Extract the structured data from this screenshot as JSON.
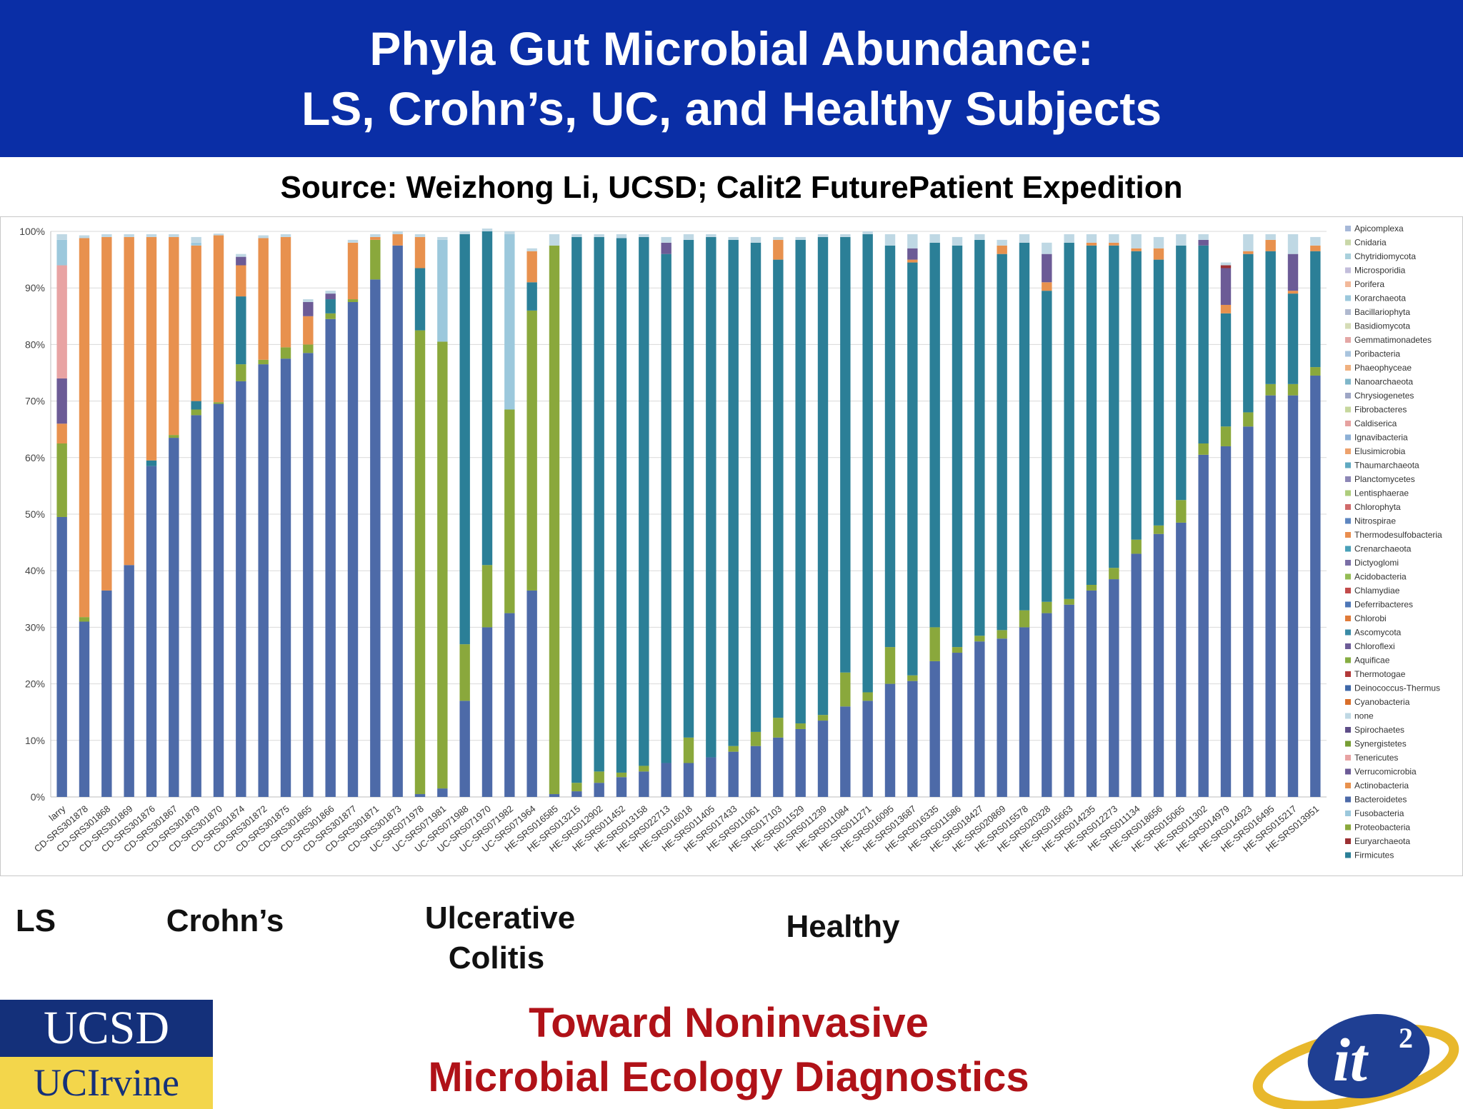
{
  "slide": {
    "title_line1": "Phyla Gut Microbial Abundance:",
    "title_line2": "LS, Crohn’s, UC, and Healthy Subjects",
    "source": "Source: Weizhong Li, UCSD; Calit2 FuturePatient Expedition",
    "group_labels": {
      "ls": "LS",
      "crohns": "Crohn’s",
      "uc_line1": "Ulcerative",
      "uc_line2": "Colitis",
      "healthy": "Healthy"
    },
    "tagline_line1": "Toward Noninvasive",
    "tagline_line2": "Microbial Ecology Diagnostics",
    "logo_ucsd": "UCSD",
    "logo_uci": "UCIrvine",
    "logo_it2": "it",
    "logo_it2_sup": "2",
    "colors": {
      "title_band": "#0a2ea6",
      "tagline": "#b01218"
    }
  },
  "chart_data": {
    "type": "bar",
    "stacked": true,
    "normalized": true,
    "ylim": [
      0,
      100
    ],
    "yticks": [
      "0%",
      "10%",
      "20%",
      "30%",
      "40%",
      "50%",
      "60%",
      "70%",
      "80%",
      "90%",
      "100%"
    ],
    "grid": true,
    "legend_position": "right",
    "categories": [
      "larry",
      "CD-SRS301878",
      "CD-SRS301868",
      "CD-SRS301869",
      "CD-SRS301876",
      "CD-SRS301867",
      "CD-SRS301879",
      "CD-SRS301870",
      "CD-SRS301874",
      "CD-SRS301872",
      "CD-SRS301875",
      "CD-SRS301865",
      "CD-SRS301866",
      "CD-SRS301877",
      "CD-SRS301871",
      "CD-SRS301873",
      "UC-SRS071978",
      "UC-SRS071981",
      "UC-SRS071988",
      "UC-SRS071970",
      "UC-SRS071982",
      "UC-SRS071964",
      "HE-SRS016585",
      "HE-SRS013215",
      "HE-SRS012902",
      "HE-SRS011452",
      "HE-SRS013158",
      "HE-SRS022713",
      "HE-SRS016018",
      "HE-SRS011405",
      "HE-SRS017433",
      "HE-SRS011061",
      "HE-SRS017103",
      "HE-SRS011529",
      "HE-SRS011239",
      "HE-SRS011084",
      "HE-SRS011271",
      "HE-SRS016095",
      "HE-SRS013687",
      "HE-SRS016335",
      "HE-SRS011586",
      "HE-SRS018427",
      "HE-SRS020869",
      "HE-SRS015578",
      "HE-SRS020328",
      "HE-SRS015663",
      "HE-SRS014235",
      "HE-SRS012273",
      "HE-SRS011134",
      "HE-SRS018656",
      "HE-SRS015065",
      "HE-SRS011302",
      "HE-SRS014979",
      "HE-SRS014923",
      "HE-SRS016495",
      "HE-SRS015217",
      "HE-SRS013951"
    ],
    "legend": [
      "Apicomplexa",
      "Cnidaria",
      "Chytridiomycota",
      "Microsporidia",
      "Porifera",
      "Korarchaeota",
      "Bacillariophyta",
      "Basidiomycota",
      "Gemmatimonadetes",
      "Poribacteria",
      "Phaeophyceae",
      "Nanoarchaeota",
      "Chrysiogenetes",
      "Fibrobacteres",
      "Caldiserica",
      "Ignavibacteria",
      "Elusimicrobia",
      "Thaumarchaeota",
      "Planctomycetes",
      "Lentisphaerae",
      "Chlorophyta",
      "Nitrospirae",
      "Thermodesulfobacteria",
      "Crenarchaeota",
      "Dictyoglomi",
      "Acidobacteria",
      "Chlamydiae",
      "Deferribacteres",
      "Chlorobi",
      "Ascomycota",
      "Chloroflexi",
      "Aquificae",
      "Thermotogae",
      "Deinococcus-Thermus",
      "Cyanobacteria",
      "none",
      "Spirochaetes",
      "Synergistetes",
      "Tenericutes",
      "Verrucomicrobia",
      "Actinobacteria",
      "Bacteroidetes",
      "Fusobacteria",
      "Proteobacteria",
      "Euryarchaeota",
      "Firmicutes"
    ],
    "series": [
      {
        "name": "Bacteroidetes",
        "color": "#4d6aa8",
        "values": [
          49.5,
          31,
          36.5,
          41,
          58.5,
          63.5,
          67.5,
          69.5,
          73.5,
          76.5,
          77.5,
          78.5,
          84.5,
          87.5,
          91.5,
          97.5,
          0.5,
          1.5,
          17,
          30,
          32.5,
          36.5,
          0.5,
          1,
          2.5,
          3.5,
          4.5,
          6,
          6,
          7,
          8,
          9,
          10.5,
          12,
          13.5,
          16,
          17,
          20,
          20.5,
          24,
          25.5,
          27.5,
          28,
          30,
          32.5,
          34,
          36.5,
          38.5,
          43,
          46.5,
          48.5,
          60.5,
          62,
          65.5,
          71,
          71,
          74.5
        ]
      },
      {
        "name": "Proteobacteria",
        "color": "#8aa83c",
        "values": [
          13,
          0.8,
          0,
          0,
          0,
          0.5,
          1,
          0.3,
          3,
          0.8,
          2,
          1.5,
          1,
          0.5,
          7,
          0,
          82,
          79,
          10,
          11,
          36,
          49.5,
          97,
          1.5,
          2,
          0.8,
          1,
          0,
          4.5,
          0,
          1,
          2.5,
          3.5,
          1,
          1,
          6,
          1.5,
          6.5,
          1,
          6,
          1,
          1,
          1.5,
          3,
          2,
          1,
          1,
          2,
          2.5,
          1.5,
          4,
          2,
          3.5,
          2.5,
          2,
          2,
          1.5
        ]
      },
      {
        "name": "Firmicutes",
        "color": "#2b7f97",
        "values": [
          0,
          0,
          0,
          0,
          1,
          0,
          1.5,
          0,
          12,
          0,
          0,
          0,
          2.5,
          0,
          0,
          0,
          11,
          0,
          72.5,
          59,
          0,
          5,
          0,
          96.5,
          94.5,
          94.5,
          93.5,
          90,
          88,
          92,
          89.5,
          86.5,
          81,
          85.5,
          84.5,
          77,
          81,
          71,
          73,
          68,
          71,
          70,
          66.5,
          65,
          55,
          63,
          60,
          57,
          51,
          47,
          45,
          35,
          20,
          28,
          23.5,
          16,
          20.5
        ]
      },
      {
        "name": "Actinobacteria",
        "color": "#e8914e",
        "values": [
          3.5,
          67,
          62.5,
          58,
          39.5,
          35,
          27.5,
          29.5,
          5.5,
          21.5,
          19.5,
          5,
          0,
          10,
          0.5,
          2,
          5.5,
          0,
          0,
          0,
          0,
          5.5,
          0,
          0,
          0,
          0,
          0,
          0,
          0,
          0,
          0,
          0,
          3.5,
          0,
          0,
          0,
          0,
          0,
          0.5,
          0,
          0,
          0,
          1.5,
          0,
          1.5,
          0,
          0.5,
          0.5,
          0.5,
          2,
          0,
          0,
          1.5,
          0.5,
          2,
          0.5,
          1
        ]
      },
      {
        "name": "Verrucomicrobia",
        "color": "#6c5b96",
        "values": [
          8,
          0,
          0,
          0,
          0,
          0,
          0,
          0,
          1.5,
          0,
          0,
          2.5,
          1,
          0,
          0,
          0,
          0,
          0,
          0,
          0,
          0,
          0,
          0,
          0,
          0,
          0,
          0,
          2,
          0,
          0,
          0,
          0,
          0,
          0,
          0,
          0,
          0,
          0,
          2,
          0,
          0,
          0,
          0,
          0,
          5,
          0,
          0,
          0,
          0,
          0,
          0,
          1,
          6.5,
          0,
          0,
          6.5,
          0
        ]
      },
      {
        "name": "Euryarchaeota",
        "color": "#9b3033",
        "values": [
          0,
          0,
          0,
          0,
          0,
          0,
          0,
          0,
          0,
          0,
          0,
          0,
          0,
          0,
          0,
          0,
          0,
          0,
          0,
          0,
          0,
          0,
          0,
          0,
          0,
          0,
          0,
          0,
          0,
          0,
          0,
          0,
          0,
          0,
          0,
          0,
          0,
          0,
          0,
          0,
          0,
          0,
          0,
          0,
          0,
          0,
          0,
          0,
          0,
          0,
          0,
          0,
          0.5,
          0,
          0,
          0,
          0
        ]
      },
      {
        "name": "Tenericutes",
        "color": "#e8a3a3",
        "values": [
          20,
          0,
          0,
          0,
          0,
          0,
          0,
          0,
          0,
          0,
          0,
          0,
          0,
          0,
          0,
          0,
          0,
          0,
          0,
          0,
          0,
          0,
          0,
          0,
          0,
          0,
          0,
          0,
          0,
          0,
          0,
          0,
          0,
          0,
          0,
          0,
          0,
          0,
          0,
          0,
          0,
          0,
          0,
          0,
          0,
          0,
          0,
          0,
          0,
          0,
          0,
          0,
          0,
          0,
          0,
          0,
          0
        ]
      },
      {
        "name": "Fusobacteria",
        "color": "#9cc8dc",
        "values": [
          4.5,
          0,
          0,
          0,
          0,
          0,
          0.5,
          0,
          0,
          0,
          0,
          0,
          0,
          0,
          0,
          0,
          0,
          18,
          0,
          0,
          31,
          0,
          0,
          0,
          0,
          0,
          0,
          0,
          0,
          0,
          0,
          0,
          0,
          0,
          0,
          0,
          0,
          0,
          0,
          0,
          0,
          0,
          0,
          0,
          0,
          0,
          0,
          0,
          0,
          0,
          0,
          0,
          0,
          0,
          0,
          0,
          0
        ]
      },
      {
        "name": "none",
        "color": "#bfd8e4",
        "values": [
          1,
          0.5,
          0.5,
          0.5,
          0.5,
          0.5,
          1,
          0.3,
          0.5,
          0.5,
          0.5,
          0.5,
          0.5,
          0.5,
          0.5,
          0.5,
          0.5,
          0.5,
          0.5,
          0.5,
          0.5,
          0.5,
          2,
          0.5,
          0.5,
          0.7,
          0.5,
          1,
          1,
          0.5,
          0.5,
          1,
          0.5,
          0.5,
          0.5,
          0.5,
          0.5,
          2,
          2.5,
          1.5,
          1.5,
          1,
          1,
          1.5,
          2,
          1.5,
          1.5,
          1.5,
          2.5,
          2,
          2,
          1,
          0.5,
          3,
          1,
          3.5,
          1.5
        ]
      }
    ]
  }
}
